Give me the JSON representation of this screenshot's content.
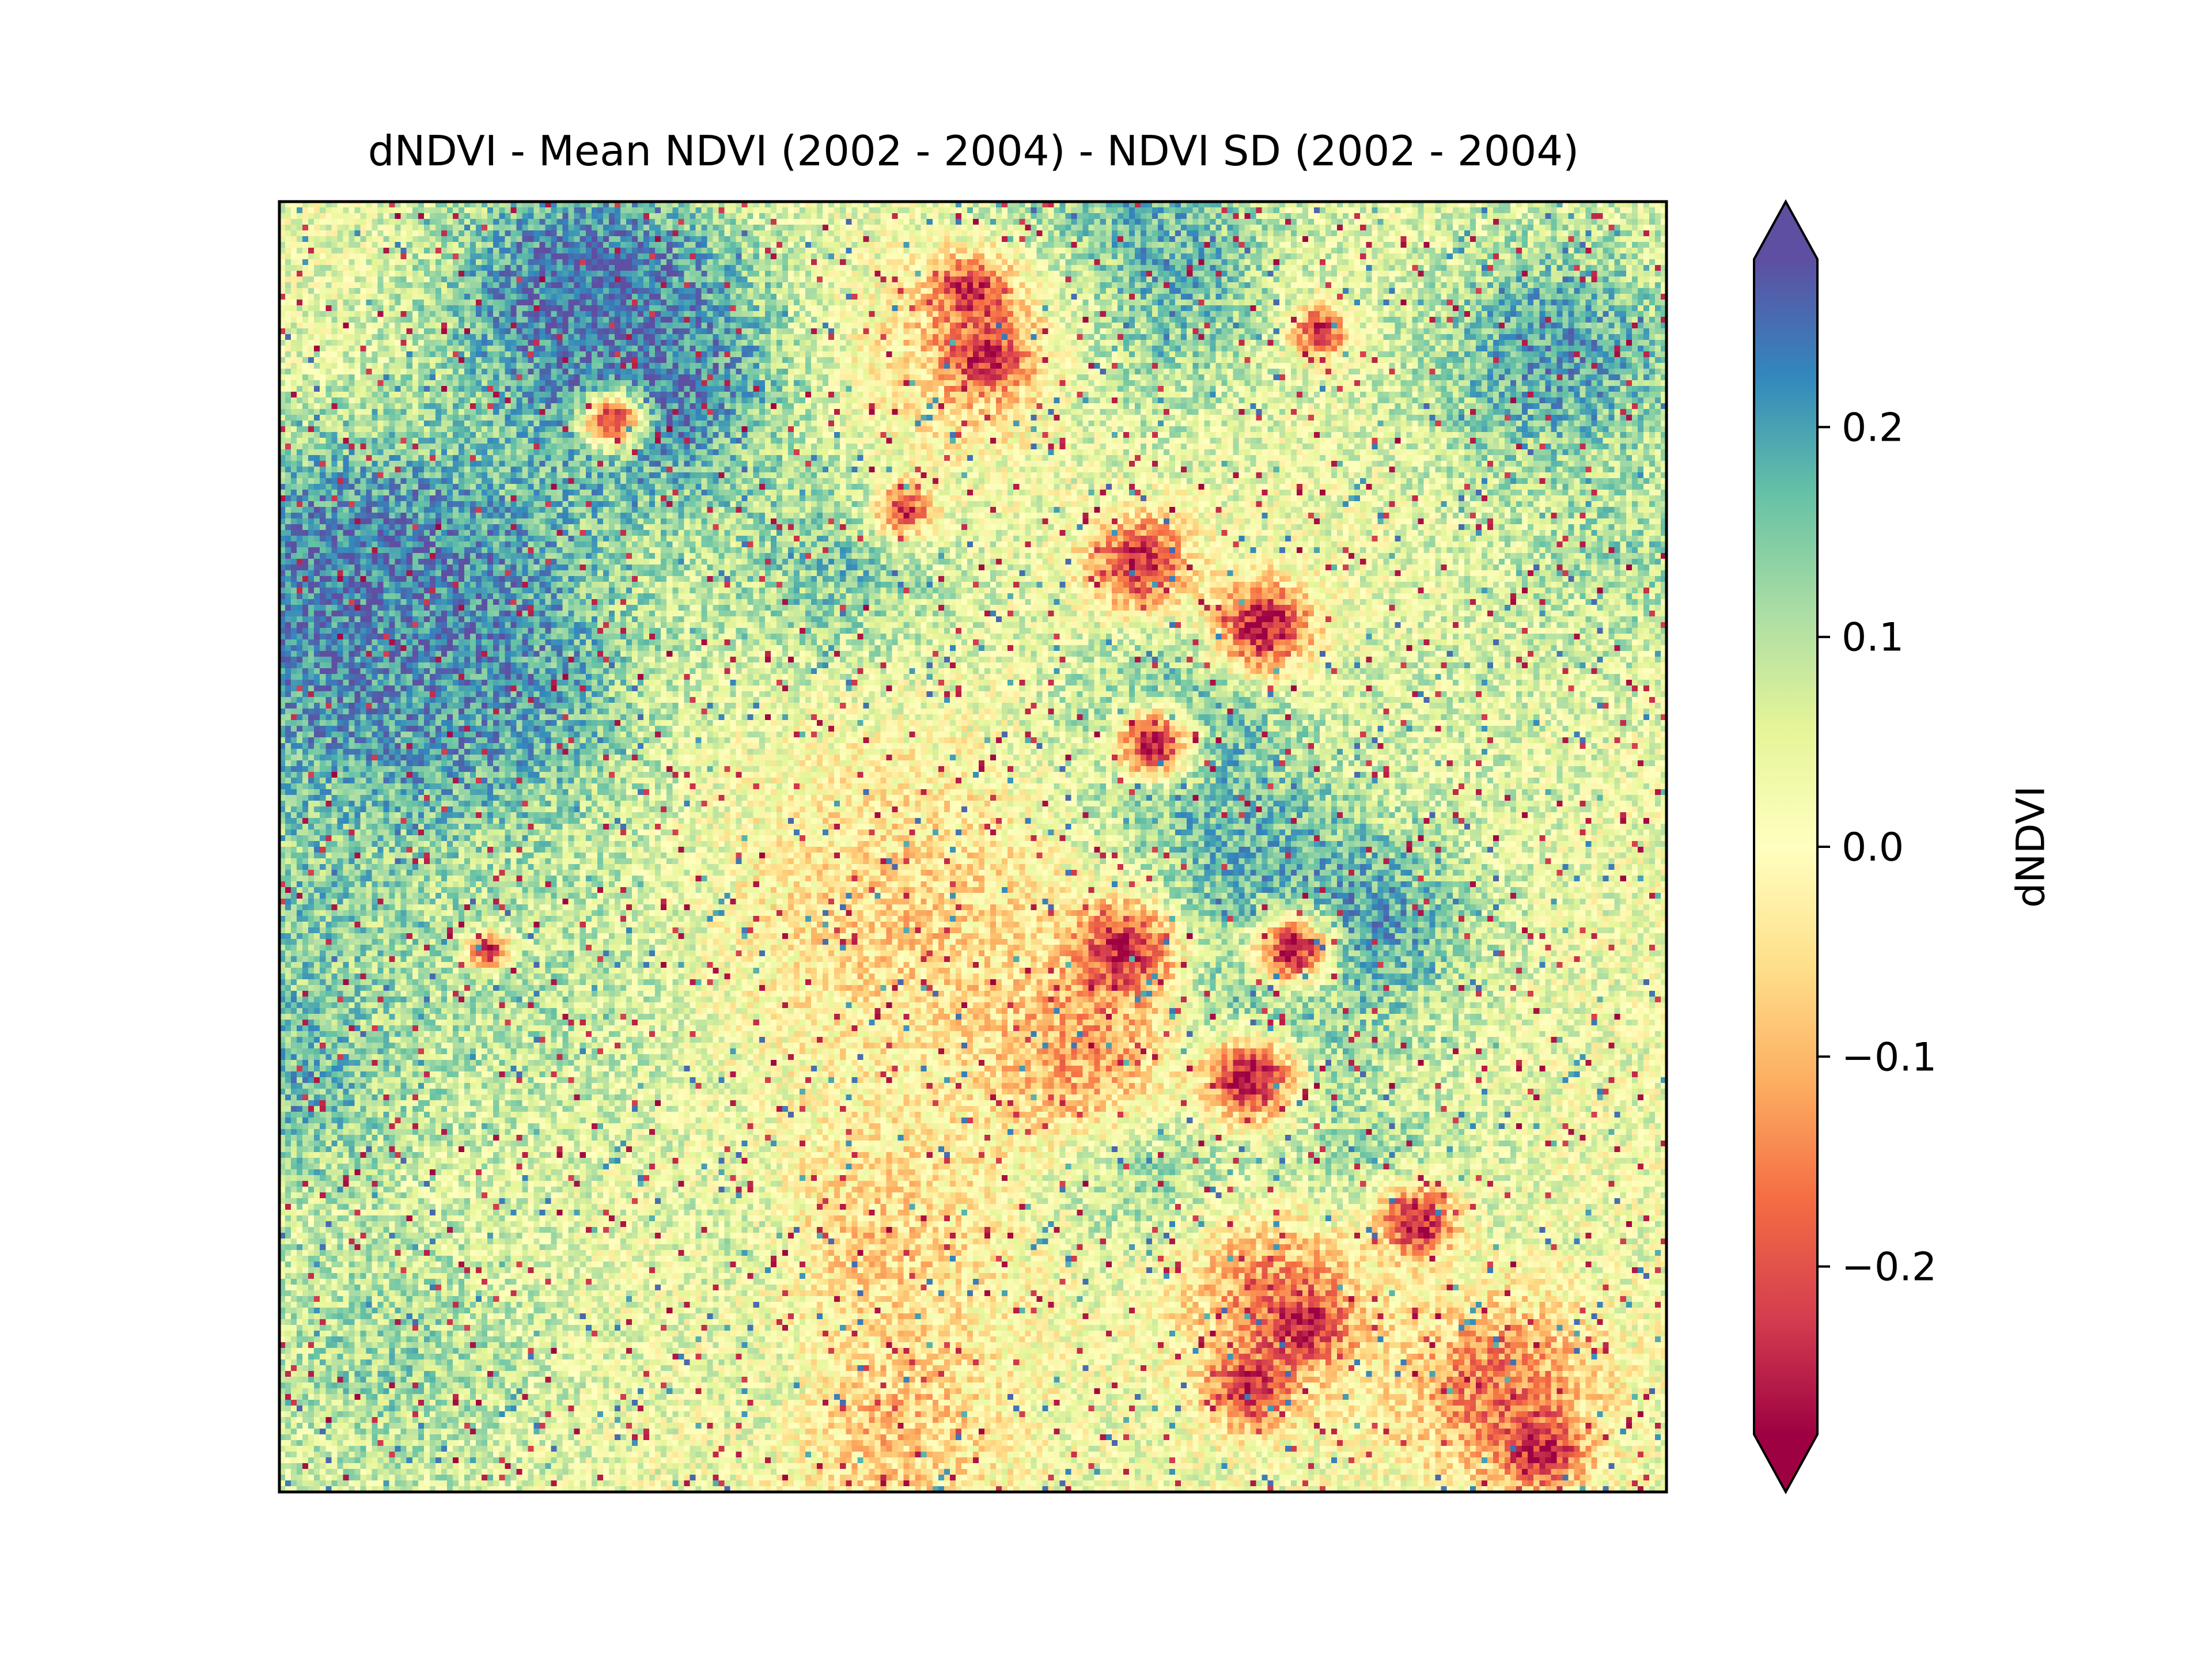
{
  "chart_data": {
    "type": "heatmap",
    "title": "dNDVI - Mean NDVI (2002 - 2004) - NDVI SD (2002 - 2004)",
    "xlabel": "",
    "ylabel": "",
    "colorbar": {
      "label": "dNDVI",
      "vmin": -0.28,
      "vmax": 0.28,
      "ticks": [
        0.2,
        0.1,
        0.0,
        -0.1,
        -0.2
      ],
      "tick_labels": [
        "0.2",
        "0.1",
        "0.0",
        "−0.1",
        "−0.2"
      ],
      "extend": "both",
      "colormap": "Spectral",
      "colors": [
        "#9e0142",
        "#d53e4f",
        "#f46d43",
        "#fdae61",
        "#fee08b",
        "#ffffbf",
        "#e6f598",
        "#abdda4",
        "#66c2a5",
        "#3288bd",
        "#5e4fa2"
      ]
    },
    "grid": {
      "columns": 240,
      "rows": 224
    },
    "features": [
      {
        "x": 0.22,
        "y": 0.07,
        "value": 0.26,
        "spread": 0.07
      },
      {
        "x": 0.27,
        "y": 0.14,
        "value": 0.24,
        "spread": 0.07
      },
      {
        "x": 0.09,
        "y": 0.34,
        "value": 0.26,
        "spread": 0.1
      },
      {
        "x": 0.05,
        "y": 0.3,
        "value": 0.24,
        "spread": 0.07
      },
      {
        "x": 0.12,
        "y": 0.4,
        "value": 0.22,
        "spread": 0.08
      },
      {
        "x": 0.03,
        "y": 0.55,
        "value": 0.16,
        "spread": 0.07
      },
      {
        "x": 0.02,
        "y": 0.68,
        "value": 0.18,
        "spread": 0.06
      },
      {
        "x": 0.18,
        "y": 0.6,
        "value": 0.1,
        "spread": 0.1
      },
      {
        "x": 0.4,
        "y": 0.28,
        "value": 0.15,
        "spread": 0.06
      },
      {
        "x": 0.62,
        "y": 0.05,
        "value": 0.2,
        "spread": 0.07
      },
      {
        "x": 0.55,
        "y": 0.1,
        "value": 0.14,
        "spread": 0.06
      },
      {
        "x": 0.92,
        "y": 0.12,
        "value": 0.2,
        "spread": 0.07
      },
      {
        "x": 0.96,
        "y": 0.28,
        "value": 0.12,
        "spread": 0.06
      },
      {
        "x": 0.65,
        "y": 0.42,
        "value": 0.2,
        "spread": 0.06
      },
      {
        "x": 0.7,
        "y": 0.5,
        "value": 0.18,
        "spread": 0.06
      },
      {
        "x": 0.78,
        "y": 0.55,
        "value": 0.22,
        "spread": 0.06
      },
      {
        "x": 0.7,
        "y": 0.65,
        "value": 0.2,
        "spread": 0.05
      },
      {
        "x": 0.62,
        "y": 0.74,
        "value": 0.15,
        "spread": 0.05
      },
      {
        "x": 0.78,
        "y": 0.75,
        "value": 0.12,
        "spread": 0.06
      },
      {
        "x": 0.36,
        "y": 0.8,
        "value": 0.16,
        "spread": 0.04
      },
      {
        "x": 0.38,
        "y": 0.92,
        "value": 0.14,
        "spread": 0.04
      },
      {
        "x": 0.08,
        "y": 0.9,
        "value": 0.12,
        "spread": 0.08
      },
      {
        "x": 0.85,
        "y": 0.4,
        "value": 0.06,
        "spread": 0.08
      },
      {
        "x": 0.45,
        "y": 0.55,
        "value": -0.06,
        "spread": 0.09
      },
      {
        "x": 0.43,
        "y": 0.8,
        "value": -0.06,
        "spread": 0.07
      },
      {
        "x": 0.44,
        "y": 0.95,
        "value": -0.08,
        "spread": 0.06
      },
      {
        "x": 0.5,
        "y": 0.12,
        "value": -0.08,
        "spread": 0.06
      },
      {
        "x": 0.58,
        "y": 0.66,
        "value": -0.12,
        "spread": 0.05
      },
      {
        "x": 0.72,
        "y": 0.85,
        "value": -0.14,
        "spread": 0.05
      },
      {
        "x": 0.88,
        "y": 0.92,
        "value": -0.16,
        "spread": 0.05
      },
      {
        "x": 0.5,
        "y": 0.07,
        "value": -0.24,
        "spread": 0.02
      },
      {
        "x": 0.51,
        "y": 0.12,
        "value": -0.24,
        "spread": 0.02
      },
      {
        "x": 0.24,
        "y": 0.17,
        "value": -0.25,
        "spread": 0.015
      },
      {
        "x": 0.45,
        "y": 0.24,
        "value": -0.22,
        "spread": 0.015
      },
      {
        "x": 0.62,
        "y": 0.28,
        "value": -0.25,
        "spread": 0.025
      },
      {
        "x": 0.71,
        "y": 0.33,
        "value": -0.27,
        "spread": 0.025
      },
      {
        "x": 0.63,
        "y": 0.42,
        "value": -0.26,
        "spread": 0.02
      },
      {
        "x": 0.61,
        "y": 0.58,
        "value": -0.26,
        "spread": 0.025
      },
      {
        "x": 0.73,
        "y": 0.58,
        "value": -0.27,
        "spread": 0.02
      },
      {
        "x": 0.7,
        "y": 0.68,
        "value": -0.28,
        "spread": 0.025
      },
      {
        "x": 0.82,
        "y": 0.79,
        "value": -0.27,
        "spread": 0.02
      },
      {
        "x": 0.74,
        "y": 0.87,
        "value": -0.24,
        "spread": 0.02
      },
      {
        "x": 0.7,
        "y": 0.92,
        "value": -0.26,
        "spread": 0.02
      },
      {
        "x": 0.91,
        "y": 0.97,
        "value": -0.26,
        "spread": 0.02
      },
      {
        "x": 0.15,
        "y": 0.58,
        "value": -0.27,
        "spread": 0.01
      },
      {
        "x": 0.75,
        "y": 0.1,
        "value": -0.22,
        "spread": 0.015
      }
    ]
  }
}
